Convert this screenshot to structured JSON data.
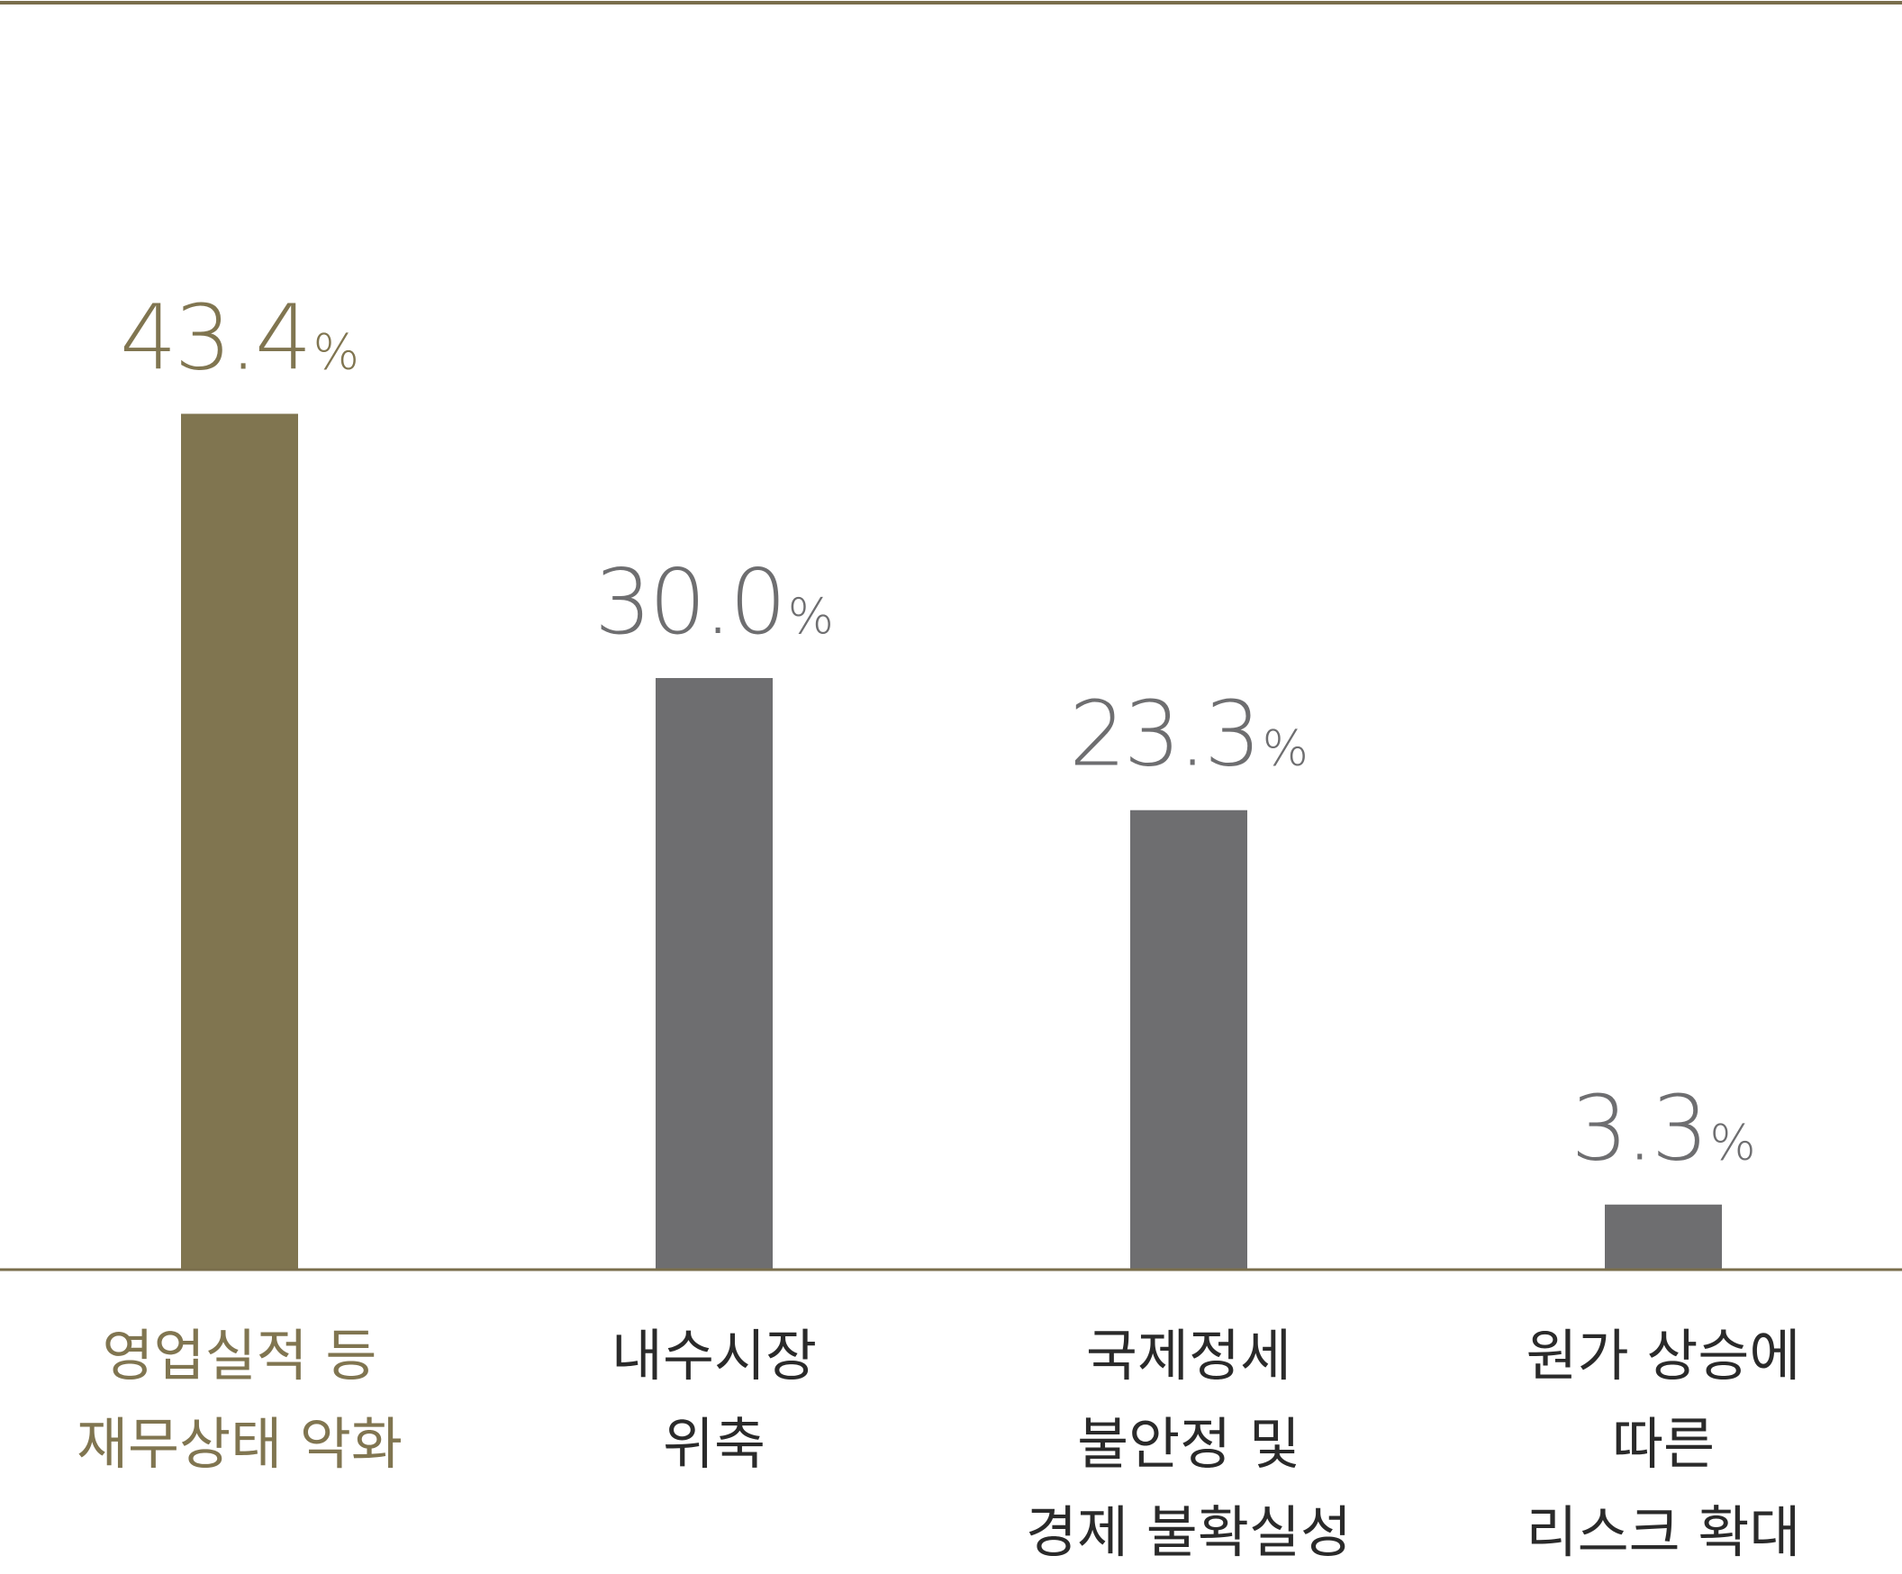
{
  "chart_data": {
    "type": "bar",
    "categories": [
      "영업실적 등\n재무상태 악화",
      "내수시장\n위축",
      "국제정세\n불안정 및\n경제 불확실성",
      "원가 상승에\n따른\n리스크 확대"
    ],
    "values": [
      43.4,
      30.0,
      23.3,
      3.3
    ],
    "value_labels": [
      "43.4",
      "30.0",
      "23.3",
      "3.3"
    ],
    "unit": "%",
    "highlight_index": 0,
    "ylim": [
      0,
      65
    ],
    "grid": false,
    "legend": "none",
    "title": "",
    "xlabel": "",
    "ylabel": ""
  },
  "colors": {
    "highlight": "#807550",
    "bar": "#6e6e70",
    "axis": "#7a6e4c",
    "highlight_text": "#807550",
    "value_text": "#6e6e70",
    "category_text": "#2a2a2a"
  }
}
